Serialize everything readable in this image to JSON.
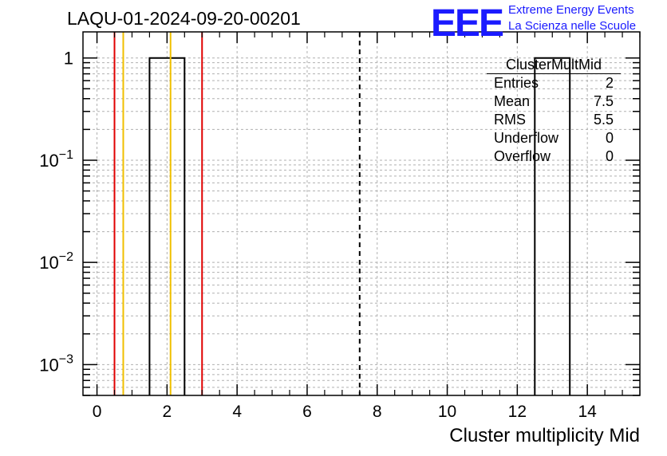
{
  "title": "LAQU-01-2024-09-20-00201",
  "logo": {
    "mark": "EEE",
    "line1": "Extreme Energy Events",
    "line2": "La Scienza nelle Scuole"
  },
  "stats_box": {
    "title": "ClusterMultMid",
    "rows": [
      {
        "label": "Entries",
        "value": "2"
      },
      {
        "label": "Mean",
        "value": "7.5"
      },
      {
        "label": "RMS",
        "value": "5.5"
      },
      {
        "label": "Underflow",
        "value": "0"
      },
      {
        "label": "Overflow",
        "value": "0"
      }
    ]
  },
  "colors": {
    "red_line": "#e00000",
    "yellow_line": "#f0c000",
    "histogram": "#000000",
    "grid": "#b0b0b0"
  },
  "chart_data": {
    "type": "histogram",
    "xlabel": "Cluster multiplicity Mid",
    "ylabel": "",
    "y_scale": "log",
    "xlim": [
      -0.4,
      15.5
    ],
    "ylim": [
      0.0005,
      1.8
    ],
    "x_ticks": [
      0,
      2,
      4,
      6,
      8,
      10,
      12,
      14
    ],
    "y_ticks": [
      {
        "value": 0.001,
        "base": "10",
        "exp": "−3"
      },
      {
        "value": 0.01,
        "base": "10",
        "exp": "−2"
      },
      {
        "value": 0.1,
        "base": "10",
        "exp": "−1"
      },
      {
        "value": 1,
        "base": "1",
        "exp": ""
      }
    ],
    "bins": [
      {
        "low": 1.5,
        "high": 2.5,
        "count": 1
      },
      {
        "low": 12.5,
        "high": 13.5,
        "count": 1
      }
    ],
    "vertical_lines": [
      {
        "x": 0.5,
        "color": "red",
        "style": "solid"
      },
      {
        "x": 0.75,
        "color": "yellow",
        "style": "solid"
      },
      {
        "x": 2.1,
        "color": "yellow",
        "style": "solid"
      },
      {
        "x": 3.0,
        "color": "red",
        "style": "solid"
      },
      {
        "x": 7.5,
        "color": "black",
        "style": "dashed"
      }
    ],
    "grid": true
  }
}
